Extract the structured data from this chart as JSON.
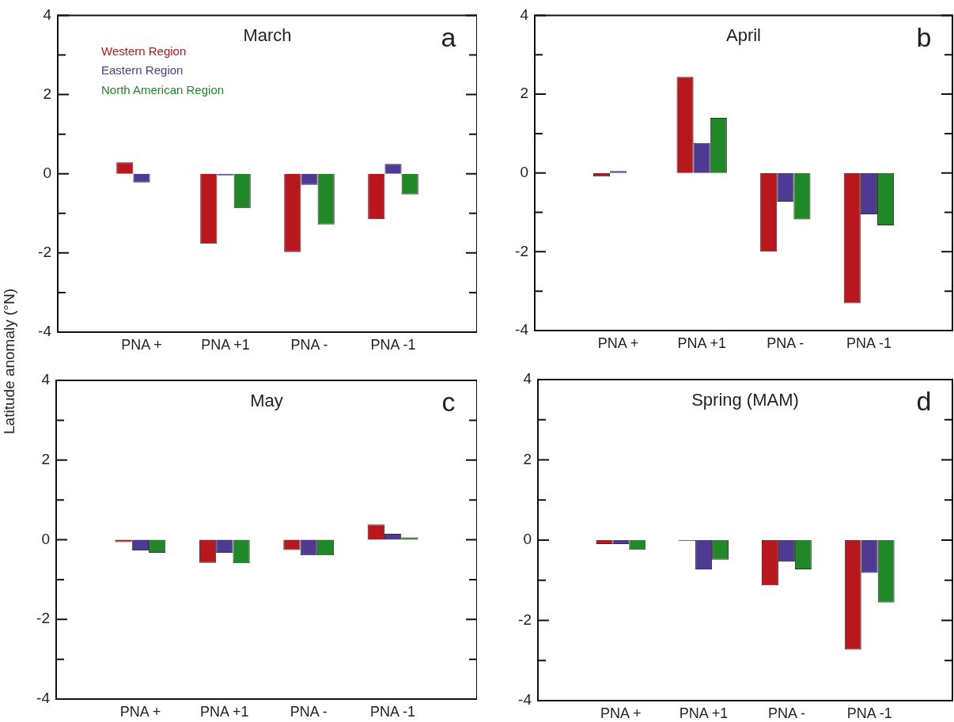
{
  "chart_data": [
    {
      "type": "bar",
      "title": "March",
      "ylabel": "Latitude anomaly (°N)",
      "annotations": [
        "a"
      ],
      "legend": "top left",
      "categories": [
        "PNA +",
        "PNA +1",
        "PNA -",
        "PNA -1"
      ],
      "ylim": [
        -4,
        4
      ],
      "yticks": [
        -4,
        {
          "value": -3,
          "label": null
        },
        -2,
        {
          "value": -1,
          "label": null
        },
        0,
        {
          "value": 1,
          "label": null
        },
        2,
        {
          "value": 3,
          "label": null
        },
        4
      ],
      "series": [
        {
          "name": "Western Region",
          "color": "#b8171e",
          "values": [
            0.29,
            -1.77,
            -1.98,
            -1.15
          ]
        },
        {
          "name": "Eastern Region",
          "color": "#4e3a92",
          "values": [
            -0.22,
            -0.04,
            -0.28,
            0.25
          ]
        },
        {
          "name": "North American Region",
          "color": "#218827",
          "values": [
            0,
            -0.87,
            -1.28,
            -0.52
          ]
        }
      ]
    },
    {
      "type": "bar",
      "title": "April",
      "annotations": [
        "b"
      ],
      "categories": [
        "PNA +",
        "PNA +1",
        "PNA -",
        "PNA -1"
      ],
      "ylim": [
        -4,
        4
      ],
      "yticks": [
        -4,
        {
          "value": -3,
          "label": null
        },
        -2,
        {
          "value": -1,
          "label": null
        },
        0,
        {
          "value": 1,
          "label": null
        },
        2,
        {
          "value": 3,
          "label": null
        },
        4
      ],
      "series": [
        {
          "color": "#b8171e",
          "values": [
            -0.09,
            2.44,
            -2.0,
            -3.31
          ]
        },
        {
          "color": "#4e3a92",
          "values": [
            0.05,
            0.76,
            -0.73,
            -1.05
          ]
        },
        {
          "color": "#218827",
          "values": [
            0,
            1.4,
            -1.18,
            -1.33
          ]
        }
      ]
    },
    {
      "type": "bar",
      "title": "May",
      "annotations": [
        "c"
      ],
      "categories": [
        "PNA +",
        "PNA +1",
        "PNA -",
        "PNA -1"
      ],
      "ylim": [
        -4,
        4
      ],
      "yticks": [
        -4,
        {
          "value": -3,
          "label": null
        },
        -2,
        {
          "value": -1,
          "label": null
        },
        0,
        {
          "value": 1,
          "label": null
        },
        2,
        {
          "value": 3,
          "label": null
        },
        4
      ],
      "series": [
        {
          "color": "#b8171e",
          "values": [
            -0.06,
            -0.58,
            -0.26,
            0.38
          ]
        },
        {
          "color": "#4e3a92",
          "values": [
            -0.27,
            -0.33,
            -0.39,
            0.15
          ]
        },
        {
          "color": "#218827",
          "values": [
            -0.33,
            -0.59,
            -0.39,
            0.06
          ]
        }
      ]
    },
    {
      "type": "bar",
      "title": "Spring (MAM)",
      "annotations": [
        "d"
      ],
      "categories": [
        "PNA +",
        "PNA +1",
        "PNA -",
        "PNA -1"
      ],
      "ylim": [
        -4,
        4
      ],
      "yticks": [
        -4,
        {
          "value": -3,
          "label": null
        },
        -2,
        {
          "value": -1,
          "label": null
        },
        0,
        {
          "value": 1,
          "label": null
        },
        2,
        {
          "value": 3,
          "label": null
        },
        4
      ],
      "series": [
        {
          "color": "#b8171e",
          "values": [
            -0.1,
            -0.02,
            -1.13,
            -2.73
          ]
        },
        {
          "color": "#4e3a92",
          "values": [
            -0.1,
            -0.73,
            -0.53,
            -0.82
          ]
        },
        {
          "color": "#218827",
          "values": [
            -0.24,
            -0.49,
            -0.73,
            -1.55
          ]
        }
      ]
    }
  ]
}
